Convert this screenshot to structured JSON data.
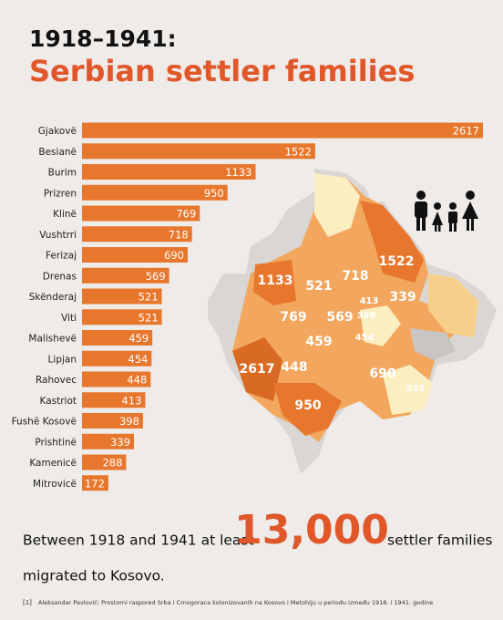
{
  "header": {
    "kicker": "1918–1941:",
    "title": "Serbian settler families"
  },
  "chart_data": {
    "type": "bar",
    "orientation": "horizontal",
    "color": "#e8772e",
    "categories": [
      "Gjakovë",
      "Besianë",
      "Burim",
      "Prizren",
      "Klinë",
      "Vushtrri",
      "Ferizaj",
      "Drenas",
      "Skënderaj",
      "Viti",
      "Malishevë",
      "Lipjan",
      "Rahovec",
      "Kastriot",
      "Fushë Kosovë",
      "Prishtinë",
      "Kamenicë",
      "Mitrovicë"
    ],
    "values": [
      2617,
      1522,
      1133,
      950,
      769,
      718,
      690,
      569,
      521,
      521,
      459,
      454,
      448,
      413,
      398,
      339,
      288,
      172
    ]
  },
  "footer": {
    "text_before": "Between 1918 and 1941 at least",
    "highlight": "13,000",
    "text_after": "settler families",
    "text_line2": "migrated to Kosovo.",
    "note_marker": "[1]",
    "note": "Aleksandar Pavlović:  Prostorni raspored Srba i Crnogoraca kolonizovanih na Kosovo i Metohiju u periodu između 1918. i 1941. godine"
  }
}
